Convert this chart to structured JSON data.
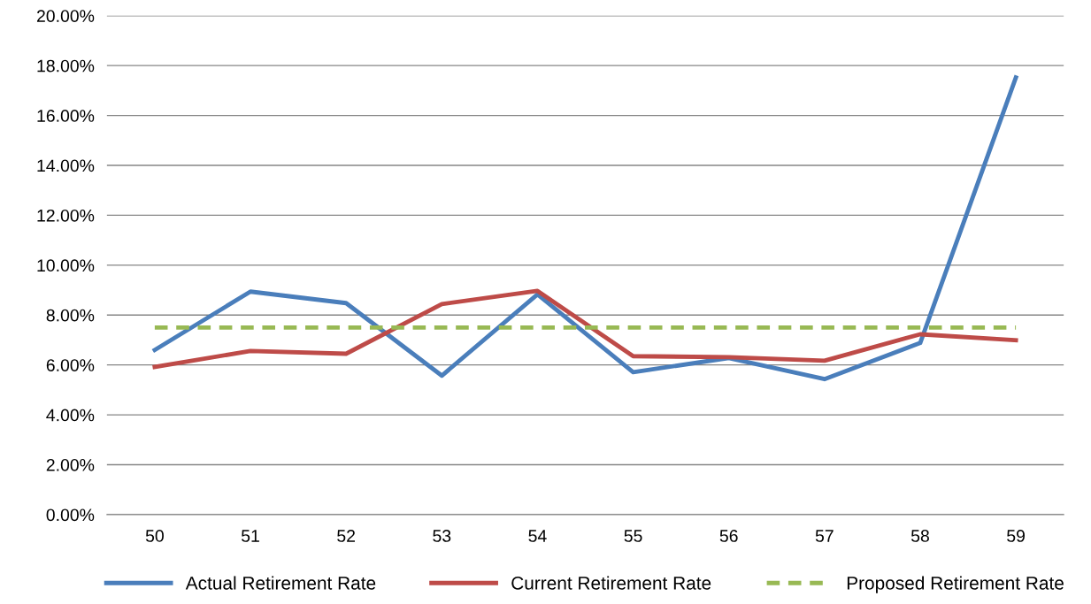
{
  "chart_data": {
    "type": "line",
    "categories": [
      "50",
      "51",
      "52",
      "53",
      "54",
      "55",
      "56",
      "57",
      "58",
      "59"
    ],
    "series": [
      {
        "name": "Actual Retirement Rate",
        "color": "#4a7ebb",
        "line_style": "solid",
        "values": [
          6.6,
          8.94,
          8.48,
          5.57,
          8.83,
          5.71,
          6.28,
          5.43,
          6.88,
          17.52
        ]
      },
      {
        "name": "Current Retirement Rate",
        "color": "#be4b48",
        "line_style": "solid",
        "values": [
          5.92,
          6.56,
          6.45,
          8.44,
          8.97,
          6.35,
          6.31,
          6.17,
          7.23,
          6.99
        ]
      },
      {
        "name": "Proposed Retirement Rate",
        "color": "#98b954",
        "line_style": "dashed",
        "values": [
          7.5,
          7.5,
          7.5,
          7.5,
          7.5,
          7.5,
          7.5,
          7.5,
          7.5,
          7.5
        ]
      }
    ],
    "ylim": [
      0,
      20
    ],
    "yticks": [
      {
        "value": 0,
        "label": "0.00%"
      },
      {
        "value": 2,
        "label": "2.00%"
      },
      {
        "value": 4,
        "label": "4.00%"
      },
      {
        "value": 6,
        "label": "6.00%"
      },
      {
        "value": 8,
        "label": "8.00%"
      },
      {
        "value": 10,
        "label": "10.00%"
      },
      {
        "value": 12,
        "label": "12.00%"
      },
      {
        "value": 14,
        "label": "14.00%"
      },
      {
        "value": 16,
        "label": "16.00%"
      },
      {
        "value": 18,
        "label": "18.00%"
      },
      {
        "value": 20,
        "label": "20.00%"
      }
    ],
    "grid": "y",
    "legend": "bottom",
    "marker": "none"
  }
}
